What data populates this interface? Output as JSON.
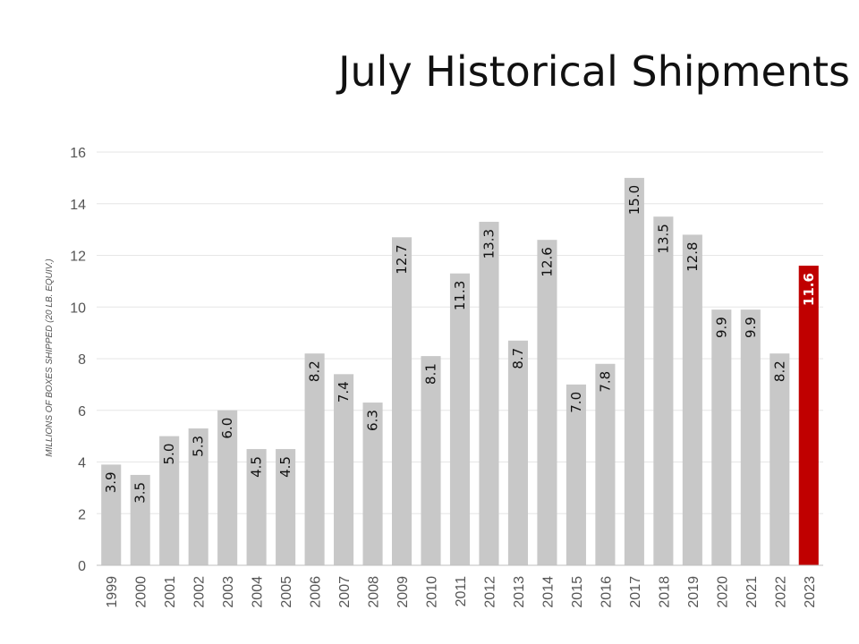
{
  "chart_data": {
    "type": "bar",
    "title": "July Historical Shipments",
    "ylabel": "MILLIONS OF BOXES SHIPPED (20 LB. EQUIV.)",
    "xlabel": "",
    "ylim": [
      0,
      16
    ],
    "yticks": [
      0,
      2,
      4,
      6,
      8,
      10,
      12,
      14,
      16
    ],
    "grid": true,
    "categories": [
      "1999",
      "2000",
      "2001",
      "2002",
      "2003",
      "2004",
      "2005",
      "2006",
      "2007",
      "2008",
      "2009",
      "2010",
      "2011",
      "2012",
      "2013",
      "2014",
      "2015",
      "2016",
      "2017",
      "2018",
      "2019",
      "2020",
      "2021",
      "2022",
      "2023"
    ],
    "values": [
      3.9,
      3.5,
      5.0,
      5.3,
      6.0,
      4.5,
      4.5,
      8.2,
      7.4,
      6.3,
      12.7,
      8.1,
      11.3,
      13.3,
      8.7,
      12.6,
      7.0,
      7.8,
      15.0,
      13.5,
      12.8,
      9.9,
      9.9,
      8.2,
      11.6
    ],
    "data_labels": [
      "3.9",
      "3.5",
      "5.0",
      "5.3",
      "6.0",
      "4.5",
      "4.5",
      "8.2",
      "7.4",
      "6.3",
      "12.7",
      "8.1",
      "11.3",
      "13.3",
      "8.7",
      "12.6",
      "7.0",
      "7.8",
      "15.0",
      "13.5",
      "12.8",
      "9.9",
      "9.9",
      "8.2",
      "11.6"
    ],
    "highlight_category": "2023",
    "colors": {
      "bar": "#c8c8c8",
      "highlight": "#c00000",
      "grid": "#e6e6e6",
      "axis": "#bfbfbf"
    }
  }
}
